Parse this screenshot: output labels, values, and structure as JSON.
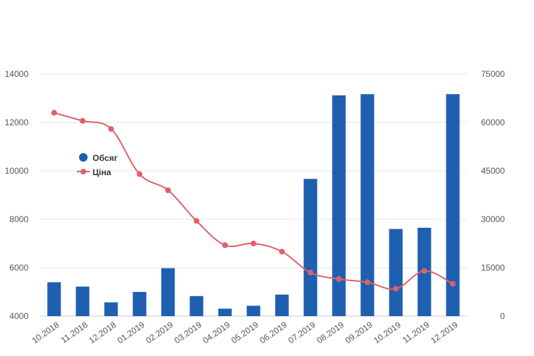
{
  "chart_data": {
    "type": "bar",
    "categories": [
      "10.2018",
      "11.2018",
      "12.2018",
      "01.2019",
      "02.2019",
      "03.2019",
      "04.2019",
      "05.2019",
      "06.2019",
      "07.2019",
      "08.2019",
      "09.2019",
      "10.2019",
      "11.2019",
      "12.2019"
    ],
    "series": [
      {
        "name": "Обсяг",
        "type": "bar",
        "axis": "left",
        "color": "#1f5fb0",
        "values": [
          5400,
          5220,
          4570,
          5000,
          5980,
          4830,
          4310,
          4430,
          4890,
          9670,
          13120,
          13170,
          7600,
          7650,
          13170
        ]
      },
      {
        "name": "Ціна",
        "type": "line",
        "axis": "right",
        "color": "#e06068",
        "values": [
          63000,
          60500,
          58000,
          44000,
          39000,
          29500,
          22000,
          22500,
          20000,
          13500,
          11500,
          10500,
          8500,
          14000,
          10000
        ]
      }
    ],
    "left_axis": {
      "ylim": [
        4000,
        14000
      ],
      "ticks": [
        "4000",
        "6000",
        "8000",
        "10000",
        "12000",
        "14000"
      ]
    },
    "right_axis": {
      "ylim": [
        0,
        75000
      ],
      "ticks": [
        "0",
        "15000",
        "30000",
        "45000",
        "60000",
        "75000"
      ]
    },
    "xlabel": "",
    "ylabel": "",
    "title": "",
    "grid": true,
    "legend_position": "left-middle"
  }
}
